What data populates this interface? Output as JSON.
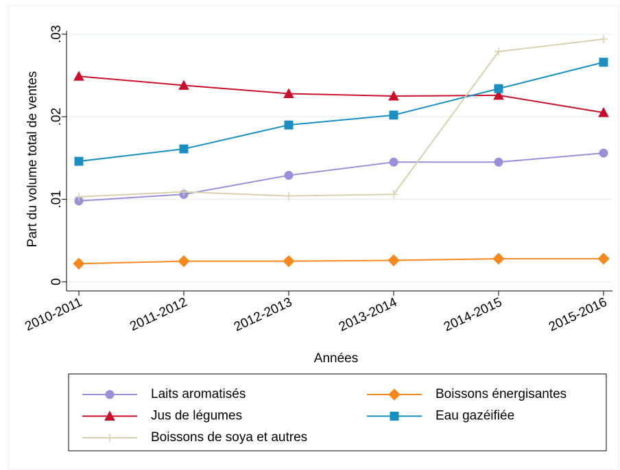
{
  "chart_data": {
    "type": "line",
    "x_label": "Années",
    "y_label": "Part du volume total de ventes",
    "categories": [
      "2010-2011",
      "2011-2012",
      "2012-2013",
      "2013-2014",
      "2014-2015",
      "2015-2016"
    ],
    "series": [
      {
        "name": "Laits aromatisés",
        "color": "#9b8fd8",
        "marker": "circle",
        "values": [
          0.0098,
          0.0106,
          0.0129,
          0.0145,
          0.0145,
          0.0156
        ]
      },
      {
        "name": "Boissons énergisantes",
        "color": "#f5891f",
        "marker": "diamond",
        "values": [
          0.0022,
          0.0025,
          0.0025,
          0.0026,
          0.0028,
          0.0028
        ]
      },
      {
        "name": "Jus de légumes",
        "color": "#c8102e",
        "marker": "triangle",
        "values": [
          0.0249,
          0.0238,
          0.0228,
          0.0225,
          0.0226,
          0.0205
        ]
      },
      {
        "name": "Eau gazéifiée",
        "color": "#1a8fbf",
        "marker": "square",
        "values": [
          0.0146,
          0.0161,
          0.019,
          0.0202,
          0.0234,
          0.0266
        ]
      },
      {
        "name": "Boissons de soya et autres",
        "color": "#d8d0ae",
        "marker": "plus",
        "values": [
          0.0103,
          0.0109,
          0.0104,
          0.0106,
          0.0279,
          0.0294
        ]
      }
    ],
    "ylim": [
      -0.0011,
      0.0304
    ],
    "yticks": [
      0,
      {
        "value": 0.01,
        "label": ".01"
      },
      {
        "value": 0.02,
        "label": ".02"
      },
      {
        "value": 0.03,
        "label": ".03"
      }
    ],
    "grid": true,
    "legend": "bottom"
  }
}
